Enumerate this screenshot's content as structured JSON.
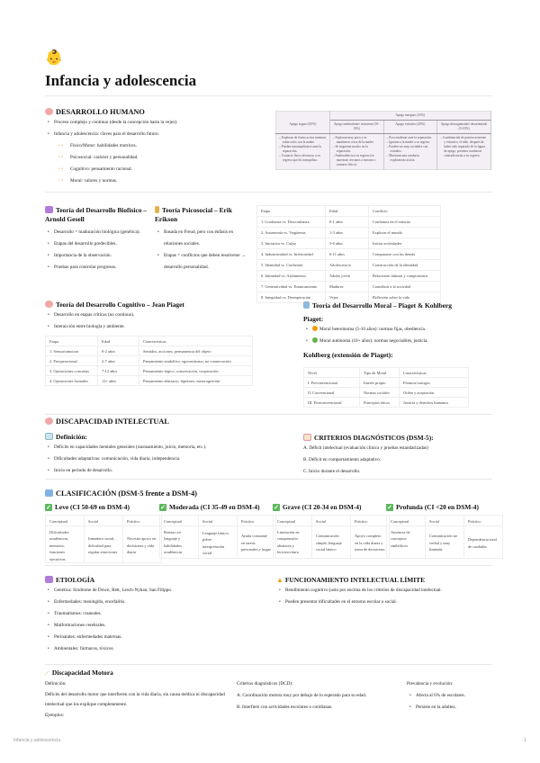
{
  "title": "Infancia y adolescencia",
  "icon": "baby-emoji-icon",
  "desarrollo": {
    "heading": "DESARROLLO HUMANO",
    "bullets": [
      "Proceso complejo y continuo (desde la concepción hasta la vejez).",
      "Infancia y adolescencia: claves para el desarrollo futuro."
    ],
    "sub": [
      "Físico/Motor: habilidades motrices.",
      "Psicosocial: carácter y personalidad.",
      "Cognitivo: pensamiento racional.",
      "Moral: valores y normas."
    ]
  },
  "apego": {
    "group": "Apego inseguro (35%)",
    "cols": [
      "Apego seguro (65%)",
      "Apego ambivalente/ resistente (10-15%)",
      "Apego evitativo (20%)",
      "Apego desorganizado/ desorientado (5-10%)"
    ],
    "cells": [
      [
        "Exploran de forma activa mientras están solos con la madre.",
        "Pueden intranquilizarse ante la separación.",
        "Contacto físico afectuoso a su regreso que les tranquiliza."
      ],
      [
        "Exploran muy poco y se mantienen cerca de la madre.",
        "Se inquietan mucho en la separación.",
        "Ambivalencia a su regreso (se muestran cercanos a mostrar o contacto físico)."
      ],
      [
        "Poco malestar ante la separación.",
        "Ignoran a la madre a su regreso.",
        "Pueden ser muy sociables con extraños.",
        "Muestran una conducta exploratoria activa."
      ],
      [
        "Combinación de patrón resistente y evitativo, el niño, después de haber sido separado de la figura de apego, presenta conductas contradictorias a su regreso."
      ]
    ]
  },
  "gesell": {
    "heading": "Teoría del Desarrollo Biofísico – Arnold Gesell",
    "bullets": [
      "Desarrollo = maduración biológica (genética).",
      "Etapas del desarrollo predecibles.",
      "Importancia de la observación.",
      "Pruebas para controlar progresos."
    ]
  },
  "erikson": {
    "heading": "Teoría Psicosocial – Erik Erikson",
    "bullets": [
      "Basada en Freud, pero con énfasis en relaciones sociales.",
      "Etapas = conflictos que deben resolverse → desarrollo personalidad."
    ],
    "table": [
      [
        "Etapa",
        "Edad",
        "Conflicto"
      ],
      [
        "1. Confianza vs. Desconfianza",
        "0-1 años",
        "Confianza en el entorno"
      ],
      [
        "2. Autonomía vs. Vergüenza",
        "1-3 años",
        "Explorar el mundo"
      ],
      [
        "3. Iniciativa vs. Culpa",
        "3-6 años",
        "Iniciar actividades"
      ],
      [
        "4. Industriosidad vs. Inferioridad",
        "6-11 años",
        "Compararse con los demás"
      ],
      [
        "5. Identidad vs. Confusión",
        "Adolescencia",
        "Construcción de la identidad"
      ],
      [
        "6. Intimidad vs. Aislamiento",
        "Adulto joven",
        "Relaciones íntimas y compromisos"
      ],
      [
        "7. Generatividad vs. Estancamiento",
        "Madurez",
        "Contribuir a la sociedad"
      ],
      [
        "8. Integridad vs. Desesperación",
        "Vejez",
        "Reflexión sobre la vida"
      ]
    ]
  },
  "piaget": {
    "heading": "Teoría del Desarrollo Cognitivo – Jean Piaget",
    "bullets": [
      "Desarrollo en etapas críticas (no continuo).",
      "Interacción entre biología y ambiente."
    ],
    "table": [
      [
        "Etapa",
        "Edad",
        "Características"
      ],
      [
        "1. Sensoriomotora",
        "0-2 años",
        "Sentidos, acciones, permanencia del objeto"
      ],
      [
        "2. Preoperacional",
        "2-7 años",
        "Pensamiento simbólico, egocentrismo, no conservación"
      ],
      [
        "3. Operaciones concretas",
        "7-12 años",
        "Pensamiento lógico, conservación, cooperación"
      ],
      [
        "4. Operaciones formales",
        "12+ años",
        "Pensamiento abstracto, hipótesis, metacognición"
      ]
    ]
  },
  "moral": {
    "heading": "Teoría del Desarrollo Moral – Piaget & Kohlberg",
    "piaget_label": "Piaget:",
    "bullets": [
      "Moral heterónoma (5-10 años): normas fijas, obediencia.",
      "Moral autónoma (10+ años): normas negociables, justicia."
    ],
    "dot_colors": [
      "#f39c12",
      "#6ab04c"
    ],
    "kohlberg_label": "Kohlberg (extensión de Piaget):",
    "table": [
      [
        "Nivel",
        "Tipo de Moral",
        "Características"
      ],
      [
        "I. Preconvencional",
        "Interés propio",
        "Premios/castigos"
      ],
      [
        "II. Convencional",
        "Normas sociales",
        "Orden y aceptación"
      ],
      [
        "III. Postconvencional",
        "Principios éticos",
        "Justicia y derechos humanos"
      ]
    ]
  },
  "di": {
    "heading": "DISCAPACIDAD INTELECTUAL",
    "def_heading": "Definición:",
    "def": [
      "Déficits en capacidades mentales generales (razonamiento, juicio, memoria, etc.).",
      "Dificultades adaptativas: comunicación, vida diaria, independencia.",
      "Inicio en periodo de desarrollo."
    ],
    "crit_heading": "CRITERIOS DIAGNÓSTICOS (DSM-5):",
    "crit": [
      "A. Déficit intelectual (evaluación clínica y pruebas estandarizadas)",
      "B. Déficit en comportamiento adaptativo.",
      "C. Inicio durante el desarrollo."
    ]
  },
  "clasif": {
    "heading": "CLASIFICACIÓN (DSM-5 frente a DSM-4)",
    "cols": [
      "Conceptual",
      "Social",
      "Práctico"
    ],
    "levels": [
      {
        "label": "Leve (CI 50-69 en DSM-4)",
        "cells": [
          "Dificultades académicas, memoria, funciones ejecutivas",
          "Inmaduro social, dificultad para regular emociones",
          "Necesita apoyo en decisiones y vida diaria"
        ]
      },
      {
        "label": "Moderada (CI 35-49 en DSM-4)",
        "cells": [
          "Retraso en lenguaje y habilidades académicas",
          "Lenguaje básico, pobre interpretación social",
          "Ayuda constante en tareas personales y hogar"
        ]
      },
      {
        "label": "Grave (CI 20-34 en DSM-4)",
        "cells": [
          "Limitación en comprensión abstracta y lectoescritura",
          "Comunicación simple, lenguaje social básico",
          "Apoyo completo en la vida diaria y toma de decisiones"
        ]
      },
      {
        "label": "Profunda (CI <20 en DSM-4)",
        "cells": [
          "Ausencia de conceptos simbólicos",
          "Comunicación no verbal y muy limitada",
          "Dependencia total de cuidados"
        ]
      }
    ]
  },
  "etiologia": {
    "heading": "ETIOLOGÍA",
    "bullets": [
      "Genética: Síndrome de Down, Rett, Lesch-Nyhan, San Filippo.",
      "Enfermedades: meningitis, encefalitis.",
      "Traumatismos: craneales.",
      "Malformaciones cerebrales.",
      "Perinatales: enfermedades maternas.",
      "Ambientales: fármacos, tóxicos."
    ]
  },
  "limite": {
    "heading": "FUNCIONAMIENTO INTELECTUAL LÍMITE",
    "bullets": [
      "Rendimiento cognitivo justo por encima de los criterios de discapacidad intelectual.",
      "Pueden presentar dificultades en el entorno escolar o social."
    ]
  },
  "motora": {
    "heading": "Discapacidad Motora",
    "def_label": "Definición:",
    "def": "Déficits del desarrollo motor que interfieren con la vida diaria, sin causa médica ni discapacidad intelectual que los explique completamente.",
    "ej_label": "Ejemplos:",
    "crit_label": "Criterios diagnósticos (DCD):",
    "crit": [
      "A. Coordinación motora muy por debajo de lo esperado para su edad.",
      "B. Interfiere con actividades escolares o cotidianas."
    ],
    "prev_label": "Prevalencia y evolución:",
    "prev": [
      "Afecta al 6% de escolares.",
      "Persiste en la adultez."
    ]
  },
  "footer": {
    "left": "Infancia y adolescencia",
    "page": "1"
  }
}
